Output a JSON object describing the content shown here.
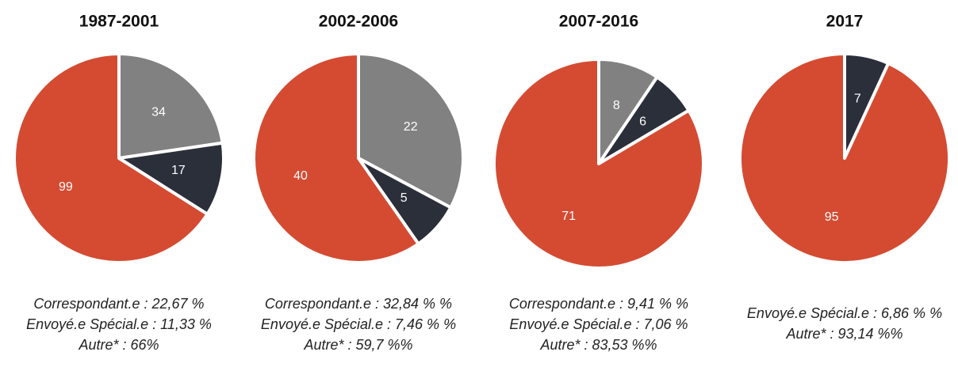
{
  "chart_data": [
    {
      "type": "pie",
      "title": "1987-2001",
      "values": [
        34,
        17,
        99
      ],
      "colors": [
        "#818181",
        "#2b2f3a",
        "#d44b32"
      ],
      "notes": [
        "Correspondant.e : 22,67 %",
        "Envoyé.e Spécial.e : 11,33 %",
        "Autre* : 66%"
      ]
    },
    {
      "type": "pie",
      "title": "2002-2006",
      "values": [
        22,
        5,
        40
      ],
      "colors": [
        "#818181",
        "#2b2f3a",
        "#d44b32"
      ],
      "notes": [
        "Correspondant.e : 32,84 % %",
        "Envoyé.e Spécial.e : 7,46 % %",
        "Autre* : 59,7 %%"
      ]
    },
    {
      "type": "pie",
      "title": "2007-2016",
      "values": [
        8,
        6,
        71
      ],
      "colors": [
        "#818181",
        "#2b2f3a",
        "#d44b32"
      ],
      "notes": [
        "Correspondant.e : 9,41 % %",
        "Envoyé.e Spécial.e : 7,06 %",
        "Autre* : 83,53 %%"
      ]
    },
    {
      "type": "pie",
      "title": "2017",
      "values": [
        7,
        95
      ],
      "colors": [
        "#2b2f3a",
        "#d44b32"
      ],
      "notes": [
        "Envoyé.e Spécial.e : 6,86 % %",
        "Autre* : 93,14 %%"
      ]
    }
  ]
}
